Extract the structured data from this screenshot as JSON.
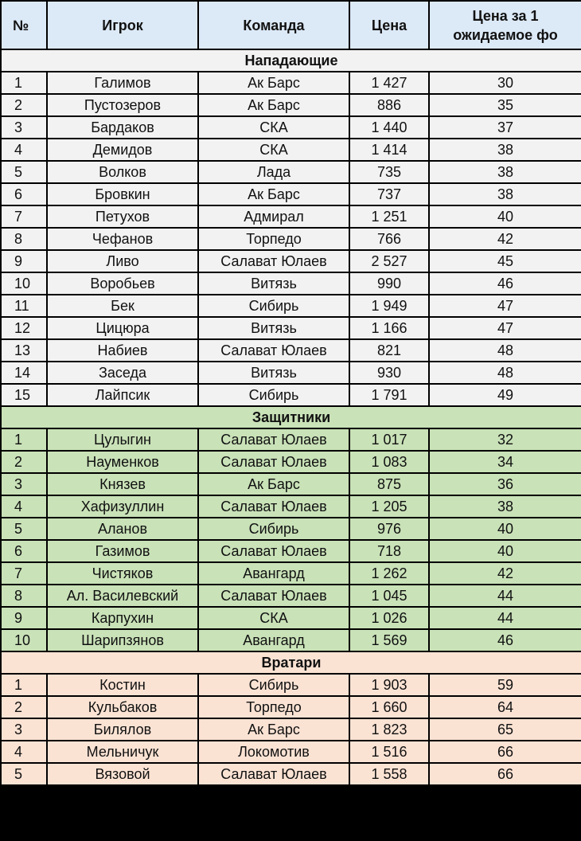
{
  "headers": {
    "num": "№",
    "player": "Игрок",
    "team": "Команда",
    "price": "Цена",
    "price_per_fp_line1": "Цена за 1",
    "price_per_fp_line2": "ожидаемое фо"
  },
  "colors": {
    "header": "#dce9f7",
    "forwards": "#f2f2f2",
    "defenders": "#c9e2b8",
    "goalies": "#fbe3d4"
  },
  "sections": [
    {
      "key": "fwd",
      "title": "Нападающие",
      "rows": [
        [
          "1",
          "Галимов",
          "Ак Барс",
          "1 427",
          "30"
        ],
        [
          "2",
          "Пустозеров",
          "Ак Барс",
          "886",
          "35"
        ],
        [
          "3",
          "Бардаков",
          "СКА",
          "1 440",
          "37"
        ],
        [
          "4",
          "Демидов",
          "СКА",
          "1 414",
          "38"
        ],
        [
          "5",
          "Волков",
          "Лада",
          "735",
          "38"
        ],
        [
          "6",
          "Бровкин",
          "Ак Барс",
          "737",
          "38"
        ],
        [
          "7",
          "Петухов",
          "Адмирал",
          "1 251",
          "40"
        ],
        [
          "8",
          "Чефанов",
          "Торпедо",
          "766",
          "42"
        ],
        [
          "9",
          "Ливо",
          "Салават Юлаев",
          "2 527",
          "45"
        ],
        [
          "10",
          "Воробьев",
          "Витязь",
          "990",
          "46"
        ],
        [
          "11",
          "Бек",
          "Сибирь",
          "1 949",
          "47"
        ],
        [
          "12",
          "Цицюра",
          "Витязь",
          "1 166",
          "47"
        ],
        [
          "13",
          "Набиев",
          "Салават Юлаев",
          "821",
          "48"
        ],
        [
          "14",
          "Заседа",
          "Витязь",
          "930",
          "48"
        ],
        [
          "15",
          "Лайпсик",
          "Сибирь",
          "1 791",
          "49"
        ]
      ]
    },
    {
      "key": "def",
      "title": "Защитники",
      "rows": [
        [
          "1",
          "Цулыгин",
          "Салават Юлаев",
          "1 017",
          "32"
        ],
        [
          "2",
          "Науменков",
          "Салават Юлаев",
          "1 083",
          "34"
        ],
        [
          "3",
          "Князев",
          "Ак Барс",
          "875",
          "36"
        ],
        [
          "4",
          "Хафизуллин",
          "Салават Юлаев",
          "1 205",
          "38"
        ],
        [
          "5",
          "Аланов",
          "Сибирь",
          "976",
          "40"
        ],
        [
          "6",
          "Газимов",
          "Салават Юлаев",
          "718",
          "40"
        ],
        [
          "7",
          "Чистяков",
          "Авангард",
          "1 262",
          "42"
        ],
        [
          "8",
          "Ал. Василевский",
          "Салават Юлаев",
          "1 045",
          "44"
        ],
        [
          "9",
          "Карпухин",
          "СКА",
          "1 026",
          "44"
        ],
        [
          "10",
          "Шарипзянов",
          "Авангард",
          "1 569",
          "46"
        ]
      ]
    },
    {
      "key": "gk",
      "title": "Вратари",
      "rows": [
        [
          "1",
          "Костин",
          "Сибирь",
          "1 903",
          "59"
        ],
        [
          "2",
          "Кульбаков",
          "Торпедо",
          "1 660",
          "64"
        ],
        [
          "3",
          "Билялов",
          "Ак Барс",
          "1 823",
          "65"
        ],
        [
          "4",
          "Мельничук",
          "Локомотив",
          "1 516",
          "66"
        ],
        [
          "5",
          "Вязовой",
          "Салават Юлаев",
          "1 558",
          "66"
        ]
      ]
    }
  ]
}
